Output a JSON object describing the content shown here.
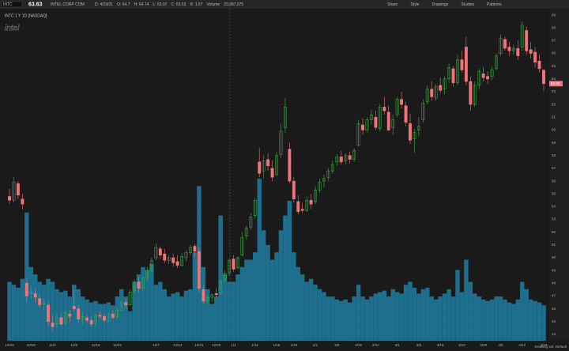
{
  "header": {
    "symbol": "INTC",
    "company": "INTEL CORP COM",
    "info": [
      "D: 4/19/21",
      "O: 64.7",
      "H: 64.74",
      "L: 63.07",
      "C: 63.63",
      "R: 1.67",
      "Volume",
      "23,997,075"
    ],
    "tools": [
      "Share",
      "Style",
      "Drawings",
      "Studies",
      "Patterns"
    ],
    "watermark": "intel",
    "footer": "Drawing set: Default"
  },
  "chart_data": {
    "type": "candlestick",
    "title": "INTC 1 Y 1D [NASDAQ]",
    "categories": [
      "10/19",
      null,
      null,
      null,
      null,
      "10/26",
      null,
      null,
      null,
      null,
      "11/2",
      null,
      null,
      null,
      null,
      "11/9",
      null,
      null,
      null,
      null,
      "11/16",
      null,
      null,
      null,
      null,
      "11/23",
      null,
      null,
      null,
      null,
      null,
      null,
      null,
      null,
      "12/7",
      null,
      null,
      null,
      null,
      "12/14",
      null,
      null,
      null,
      null,
      "12/21",
      null,
      null,
      null,
      "12/28",
      null,
      null,
      null,
      "1/4",
      null,
      null,
      null,
      null,
      "1/11",
      null,
      null,
      null,
      null,
      "1/18",
      null,
      null,
      null,
      "1/25",
      null,
      null,
      null,
      null,
      "2/1",
      null,
      null,
      null,
      null,
      "2/8",
      null,
      null,
      null,
      null,
      "2/15",
      null,
      null,
      null,
      "2/22",
      null,
      null,
      null,
      null,
      "3/1",
      null,
      null,
      null,
      null,
      "3/8",
      null,
      null,
      null,
      null,
      "3/15",
      null,
      null,
      null,
      null,
      "3/22",
      null,
      null,
      null,
      null,
      "3/29",
      null,
      null,
      null,
      "4/5",
      null,
      null,
      null,
      null,
      "4/12",
      null,
      null,
      null,
      null,
      "4/19"
    ],
    "open": [
      54.8,
      54.5,
      55.8,
      54.6,
      48.0,
      47.2,
      47.2,
      46.8,
      46.4,
      46.3,
      44.9,
      44.8,
      45.3,
      44.9,
      45.6,
      46.2,
      46.0,
      45.2,
      45.3,
      45.1,
      44.9,
      45.5,
      45.4,
      45.0,
      45.6,
      45.4,
      45.9,
      46.5,
      46.3,
      47.4,
      48.1,
      47.6,
      48.4,
      49.0,
      50.0,
      50.7,
      50.3,
      49.8,
      50.0,
      49.7,
      49.4,
      50.0,
      50.4,
      50.9,
      50.5,
      47.5,
      46.6,
      46.9,
      47.2,
      47.2,
      48.3,
      48.8,
      49.9,
      49.2,
      50.2,
      51.7,
      52.4,
      53.3,
      57.5,
      56.8,
      57.7,
      57.0,
      56.5,
      58.1,
      60.2,
      58.5,
      56.0,
      54.4,
      53.8,
      53.7,
      54.5,
      54.4,
      55.3,
      56.0,
      56.3,
      56.8,
      57.5,
      57.9,
      57.6,
      58.0,
      57.7,
      58.8,
      60.4,
      60.0,
      60.8,
      61.0,
      60.1,
      61.8,
      61.4,
      60.2,
      61.2,
      62.4,
      61.9,
      60.5,
      59.3,
      60.0,
      60.8,
      62.2,
      63.2,
      62.5,
      63.5,
      63.2,
      64.0,
      64.8,
      63.7,
      65.5,
      66.5,
      63.8,
      62.0,
      63.5,
      64.4,
      64.2,
      64.2,
      64.8,
      66.0,
      67.1,
      66.5,
      66.2,
      66.4,
      66.5,
      67.8,
      66.3,
      66.1,
      65.4,
      64.7
    ],
    "high": [
      55.4,
      56.3,
      56.0,
      55.0,
      48.4,
      47.8,
      47.6,
      47.0,
      46.8,
      46.5,
      45.5,
      45.6,
      45.6,
      45.9,
      45.9,
      47.5,
      46.3,
      45.8,
      45.6,
      45.4,
      45.6,
      45.8,
      45.6,
      45.7,
      45.9,
      46.1,
      46.7,
      46.8,
      47.5,
      48.3,
      48.5,
      48.6,
      49.3,
      50.0,
      51.1,
      50.9,
      50.7,
      50.2,
      50.3,
      50.2,
      50.4,
      50.6,
      51.0,
      51.1,
      50.8,
      47.8,
      47.1,
      47.2,
      47.6,
      48.3,
      49.0,
      49.9,
      50.2,
      50.1,
      52.0,
      52.5,
      53.5,
      54.7,
      58.6,
      58.0,
      58.2,
      57.6,
      58.3,
      60.5,
      62.5,
      59.0,
      56.3,
      54.9,
      54.3,
      54.8,
      55.0,
      55.6,
      56.2,
      56.5,
      57.0,
      57.6,
      58.1,
      58.4,
      58.2,
      58.3,
      58.6,
      60.8,
      60.9,
      61.0,
      61.6,
      61.5,
      62.0,
      62.6,
      61.9,
      61.2,
      62.6,
      63.0,
      62.2,
      61.3,
      60.1,
      61.0,
      62.4,
      63.5,
      63.8,
      63.6,
      64.1,
      64.2,
      65.2,
      65.0,
      65.9,
      66.2,
      67.3,
      64.2,
      63.8,
      64.8,
      64.9,
      64.6,
      65.0,
      66.0,
      67.5,
      67.3,
      66.9,
      66.7,
      67.0,
      68.5,
      68.1,
      66.9,
      66.5,
      65.9,
      64.74
    ],
    "low": [
      54.2,
      54.3,
      54.6,
      53.8,
      46.5,
      46.8,
      46.5,
      46.1,
      45.9,
      44.6,
      44.3,
      44.5,
      44.7,
      44.7,
      45.0,
      45.8,
      44.9,
      44.8,
      44.9,
      44.6,
      44.6,
      45.2,
      44.9,
      44.9,
      45.2,
      45.2,
      45.8,
      46.0,
      46.2,
      47.2,
      47.3,
      47.3,
      48.2,
      48.9,
      49.8,
      49.9,
      49.6,
      49.5,
      49.3,
      49.2,
      49.3,
      49.7,
      50.2,
      50.1,
      47.3,
      46.4,
      46.3,
      46.5,
      46.9,
      47.1,
      48.1,
      48.6,
      48.9,
      49.1,
      50.1,
      51.4,
      52.2,
      53.1,
      56.3,
      56.2,
      56.8,
      56.0,
      56.4,
      57.8,
      59.8,
      55.8,
      54.3,
      53.4,
      53.5,
      53.6,
      53.8,
      54.2,
      55.1,
      55.5,
      56.0,
      56.6,
      57.2,
      57.3,
      57.3,
      57.4,
      57.5,
      58.7,
      59.6,
      59.8,
      60.4,
      60.0,
      59.9,
      61.2,
      59.9,
      59.6,
      61.0,
      61.7,
      60.3,
      58.9,
      58.2,
      59.5,
      60.6,
      62.0,
      62.3,
      62.3,
      62.9,
      62.8,
      63.7,
      63.4,
      63.5,
      64.5,
      63.5,
      61.5,
      61.8,
      63.2,
      63.8,
      63.6,
      63.9,
      64.7,
      65.8,
      66.2,
      65.8,
      65.9,
      65.5,
      66.2,
      65.9,
      65.6,
      64.9,
      64.5,
      63.07
    ],
    "close": [
      54.5,
      55.9,
      54.9,
      54.2,
      47.0,
      47.3,
      46.9,
      46.3,
      46.4,
      45.0,
      44.6,
      45.3,
      44.8,
      45.7,
      45.4,
      46.0,
      45.2,
      45.4,
      45.1,
      44.8,
      45.5,
      45.4,
      45.1,
      45.6,
      45.3,
      45.9,
      46.5,
      46.3,
      47.3,
      48.1,
      47.6,
      48.4,
      49.0,
      49.8,
      50.8,
      50.2,
      49.8,
      50.0,
      49.6,
      49.4,
      50.1,
      50.4,
      50.8,
      50.5,
      47.6,
      46.6,
      46.9,
      47.1,
      47.1,
      48.2,
      48.8,
      49.8,
      49.1,
      50.0,
      51.6,
      52.3,
      53.2,
      54.5,
      56.6,
      57.6,
      57.2,
      56.3,
      58.0,
      59.9,
      61.8,
      56.0,
      54.6,
      53.6,
      53.7,
      54.5,
      54.2,
      55.3,
      55.9,
      56.2,
      56.8,
      57.3,
      57.9,
      57.5,
      58.0,
      57.7,
      58.4,
      60.5,
      60.0,
      60.8,
      61.2,
      60.2,
      61.8,
      61.5,
      60.0,
      60.8,
      62.4,
      62.0,
      60.6,
      59.2,
      59.8,
      60.3,
      62.1,
      63.2,
      62.6,
      63.4,
      63.1,
      64.0,
      64.9,
      63.7,
      65.5,
      64.7,
      63.8,
      62.0,
      63.5,
      64.6,
      64.1,
      64.0,
      64.7,
      65.8,
      67.2,
      66.4,
      66.2,
      66.4,
      65.8,
      68.2,
      66.2,
      66.0,
      65.3,
      64.8,
      63.63
    ],
    "volume": [
      40000000.0,
      38000000.0,
      36000000.0,
      42000000.0,
      87000000.0,
      50000000.0,
      45000000.0,
      40000000.0,
      38000000.0,
      42000000.0,
      40000000.0,
      35000000.0,
      33000000.0,
      34000000.0,
      30000000.0,
      38000000.0,
      35000000.0,
      30000000.0,
      28000000.0,
      26000000.0,
      27000000.0,
      25000000.0,
      25000000.0,
      26000000.0,
      24000000.0,
      30000000.0,
      35000000.0,
      30000000.0,
      20000000.0,
      40000000.0,
      45000000.0,
      50000000.0,
      48000000.0,
      52000000.0,
      38000000.0,
      40000000.0,
      35000000.0,
      30000000.0,
      32000000.0,
      33000000.0,
      30000000.0,
      34000000.0,
      35000000.0,
      60000000.0,
      105000000.0,
      50000000.0,
      35000000.0,
      25000000.0,
      30000000.0,
      85000000.0,
      45000000.0,
      40000000.0,
      40000000.0,
      45000000.0,
      50000000.0,
      55000000.0,
      55000000.0,
      60000000.0,
      110000000.0,
      75000000.0,
      65000000.0,
      55000000.0,
      60000000.0,
      75000000.0,
      85000000.0,
      95000000.0,
      60000000.0,
      50000000.0,
      45000000.0,
      40000000.0,
      42000000.0,
      38000000.0,
      35000000.0,
      33000000.0,
      30000000.0,
      30000000.0,
      28000000.0,
      27000000.0,
      28000000.0,
      26000000.0,
      30000000.0,
      38000000.0,
      30000000.0,
      28000000.0,
      30000000.0,
      32000000.0,
      33000000.0,
      34000000.0,
      30000000.0,
      35000000.0,
      33000000.0,
      32000000.0,
      38000000.0,
      40000000.0,
      36000000.0,
      32000000.0,
      35000000.0,
      36000000.0,
      30000000.0,
      28000000.0,
      30000000.0,
      32000000.0,
      35000000.0,
      30000000.0,
      48000000.0,
      33000000.0,
      55000000.0,
      40000000.0,
      32000000.0,
      30000000.0,
      28000000.0,
      27000000.0,
      28000000.0,
      30000000.0,
      30000000.0,
      28000000.0,
      26000000.0,
      25000000.0,
      28000000.0,
      40000000.0,
      35000000.0,
      28000000.0,
      27000000.0,
      26000000.0,
      23997075
    ],
    "up_color": "#3fae49",
    "down_color": "#f0747a",
    "volume_color": "#1e6e8e",
    "ylim": [
      43.5,
      69.5
    ],
    "yticks": [
      44,
      45,
      46,
      47,
      48,
      49,
      50,
      51,
      52,
      53,
      54,
      55,
      56,
      57,
      58,
      59,
      60,
      61,
      62,
      63,
      64,
      65,
      66,
      67,
      68,
      69
    ],
    "grid": true
  }
}
